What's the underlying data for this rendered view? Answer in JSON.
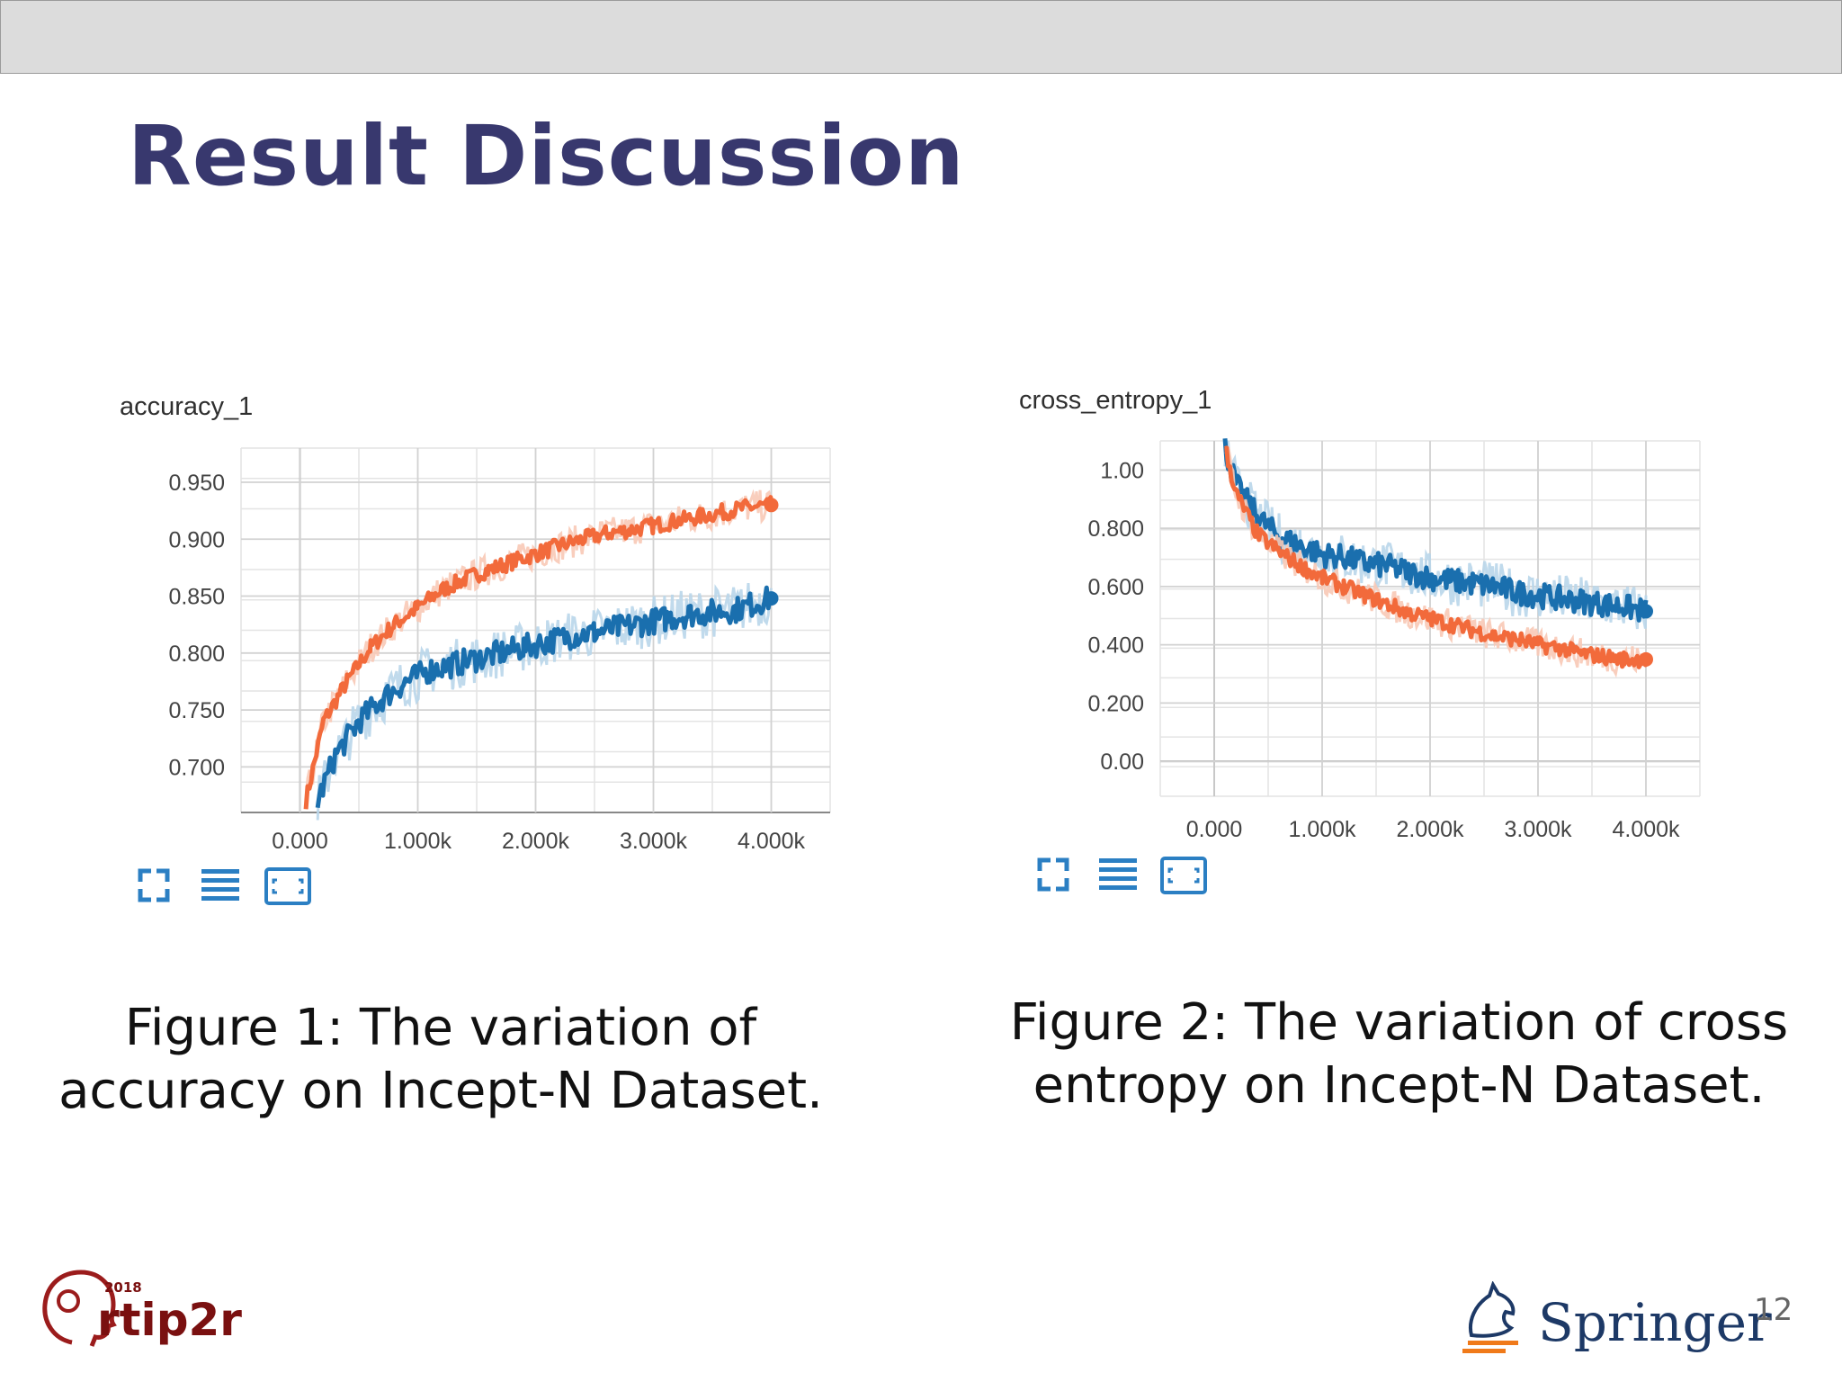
{
  "slide": {
    "title": "Result Discussion",
    "page_number": "12",
    "logo_left": {
      "year": "2018",
      "name": "rtip2r"
    },
    "logo_right": {
      "name": "Springer"
    }
  },
  "colors": {
    "title": "#38386e",
    "series_train": "#f26a3b",
    "series_validation": "#1a6fae",
    "series_train_band": "#f8c9b6",
    "series_validation_band": "#b9d6ea"
  },
  "captions": {
    "fig1_line1": "Figure 1: The variation of",
    "fig1_line2": "accuracy on Incept-N Dataset.",
    "fig2_line1": "Figure 2: The variation of cross",
    "fig2_line2": "entropy on Incept-N Dataset."
  },
  "toolbar_icons": [
    "fullscreen-icon",
    "list-icon",
    "fit-domain-icon"
  ],
  "chart_data": [
    {
      "type": "line",
      "title": "accuracy_1",
      "xlabel": "",
      "ylabel": "",
      "x_ticks": [
        "0.000",
        "1.000k",
        "2.000k",
        "3.000k",
        "4.000k"
      ],
      "y_ticks": [
        "0.950",
        "0.900",
        "0.850",
        "0.800",
        "0.750",
        "0.700"
      ],
      "xlim": [
        -500,
        4500
      ],
      "ylim": [
        0.66,
        0.98
      ],
      "grid": true,
      "series": [
        {
          "color": "#f26a3b",
          "x": [
            50,
            200,
            400,
            600,
            800,
            1000,
            1200,
            1400,
            1600,
            1800,
            2000,
            2200,
            2400,
            2600,
            2800,
            3000,
            3200,
            3400,
            3600,
            3800,
            4000
          ],
          "y": [
            0.67,
            0.74,
            0.775,
            0.805,
            0.825,
            0.84,
            0.855,
            0.865,
            0.873,
            0.88,
            0.887,
            0.894,
            0.9,
            0.905,
            0.908,
            0.912,
            0.916,
            0.92,
            0.924,
            0.928,
            0.93
          ]
        },
        {
          "color": "#1a6fae",
          "x": [
            150,
            300,
            500,
            700,
            900,
            1100,
            1300,
            1500,
            1700,
            1900,
            2100,
            2300,
            2500,
            2700,
            2900,
            3100,
            3300,
            3500,
            3700,
            3900,
            4000
          ],
          "y": [
            0.67,
            0.71,
            0.74,
            0.76,
            0.775,
            0.785,
            0.79,
            0.795,
            0.8,
            0.805,
            0.81,
            0.815,
            0.818,
            0.822,
            0.826,
            0.83,
            0.834,
            0.836,
            0.838,
            0.845,
            0.848
          ]
        }
      ]
    },
    {
      "type": "line",
      "title": "cross_entropy_1",
      "xlabel": "",
      "ylabel": "",
      "x_ticks": [
        "0.000",
        "1.000k",
        "2.000k",
        "3.000k",
        "4.000k"
      ],
      "y_ticks": [
        "1.00",
        "0.800",
        "0.600",
        "0.400",
        "0.200",
        "0.00"
      ],
      "xlim": [
        -500,
        4500
      ],
      "ylim": [
        -0.12,
        1.1
      ],
      "grid": true,
      "series": [
        {
          "color": "#1a6fae",
          "x": [
            100,
            200,
            400,
            600,
            800,
            1000,
            1200,
            1400,
            1600,
            1800,
            2000,
            2200,
            2400,
            2600,
            2800,
            3000,
            3200,
            3400,
            3600,
            3800,
            4000
          ],
          "y": [
            1.08,
            0.95,
            0.84,
            0.77,
            0.74,
            0.71,
            0.7,
            0.68,
            0.67,
            0.65,
            0.63,
            0.62,
            0.61,
            0.6,
            0.58,
            0.57,
            0.56,
            0.55,
            0.54,
            0.53,
            0.515
          ]
        },
        {
          "color": "#f26a3b",
          "x": [
            100,
            200,
            400,
            600,
            800,
            1000,
            1200,
            1400,
            1600,
            1800,
            2000,
            2200,
            2400,
            2600,
            2800,
            3000,
            3200,
            3400,
            3600,
            3800,
            4000
          ],
          "y": [
            1.08,
            0.92,
            0.78,
            0.72,
            0.67,
            0.63,
            0.6,
            0.57,
            0.54,
            0.51,
            0.49,
            0.47,
            0.45,
            0.43,
            0.42,
            0.4,
            0.39,
            0.37,
            0.36,
            0.35,
            0.35
          ]
        }
      ]
    }
  ]
}
